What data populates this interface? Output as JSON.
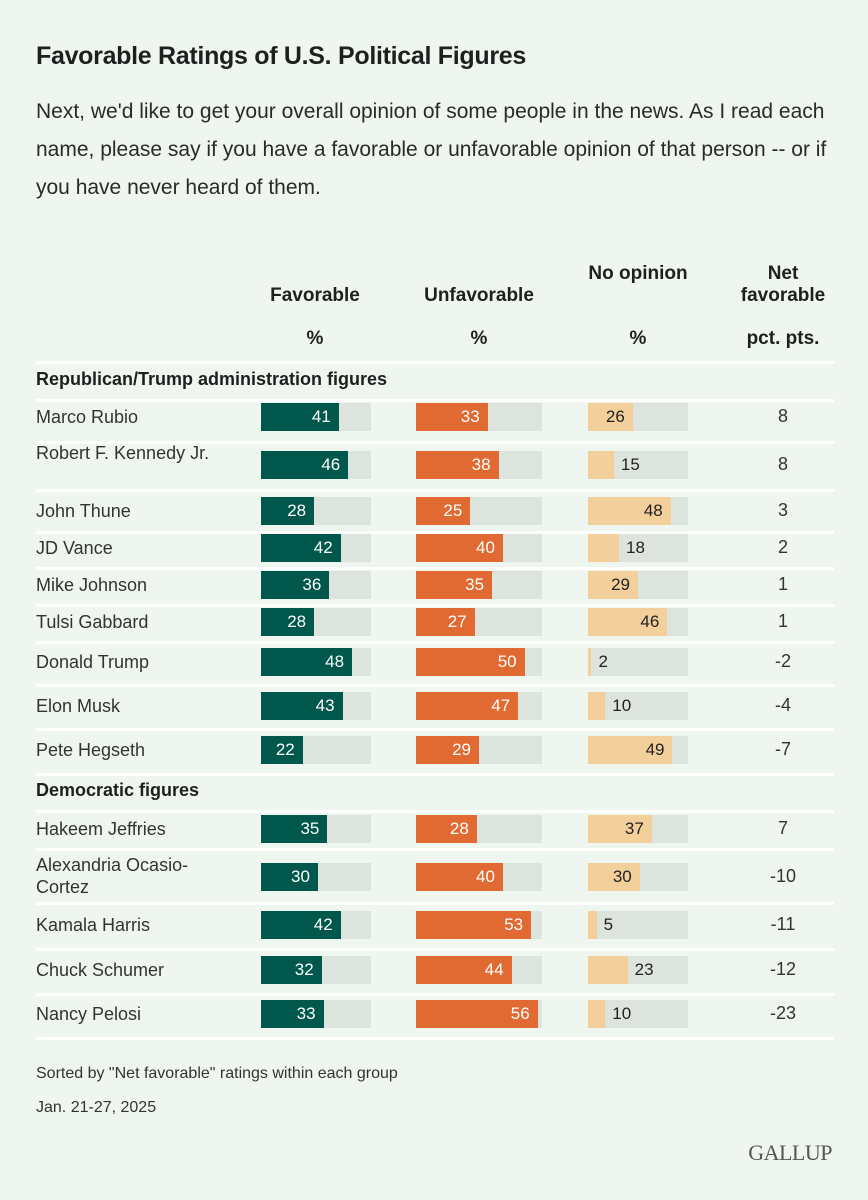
{
  "title": "Favorable Ratings of U.S. Political Figures",
  "subtitle": "Next, we'd like to get your overall opinion of some people in the news. As I read each name, please say if you have a favorable or unfavorable opinion of that person -- or if you have never heard of them.",
  "footer": {
    "note": "Sorted by \"Net favorable\" ratings within each group",
    "date": "Jan. 21-27, 2025",
    "logo": "GALLUP"
  },
  "colors": {
    "favorable": "#00574b",
    "unfavorable": "#e06a31",
    "no_opinion": "#f2cf9b",
    "track": "#dde4dd",
    "background": "#eff6ef"
  },
  "chart_data": {
    "type": "table",
    "title": "Favorable Ratings of U.S. Political Figures",
    "columns": [
      {
        "key": "favorable",
        "label": "Favorable",
        "unit": "%"
      },
      {
        "key": "unfavorable",
        "label": "Unfavorable",
        "unit": "%"
      },
      {
        "key": "no_opinion",
        "label": "No opinion",
        "unit": "%"
      },
      {
        "key": "net",
        "label": "Net favorable",
        "unit": "pct. pts."
      }
    ],
    "bar_max": 58,
    "groups": [
      {
        "label": "Republican/Trump administration figures",
        "rows": [
          {
            "name": "Marco Rubio",
            "favorable": 41,
            "unfavorable": 33,
            "no_opinion": 26,
            "net": "8"
          },
          {
            "name": "Robert F. Kennedy Jr.",
            "favorable": 46,
            "unfavorable": 38,
            "no_opinion": 15,
            "net": "8"
          },
          {
            "name": "John Thune",
            "favorable": 28,
            "unfavorable": 25,
            "no_opinion": 48,
            "net": "3"
          },
          {
            "name": "JD Vance",
            "favorable": 42,
            "unfavorable": 40,
            "no_opinion": 18,
            "net": "2"
          },
          {
            "name": "Mike Johnson",
            "favorable": 36,
            "unfavorable": 35,
            "no_opinion": 29,
            "net": "1"
          },
          {
            "name": "Tulsi Gabbard",
            "favorable": 28,
            "unfavorable": 27,
            "no_opinion": 46,
            "net": "1"
          },
          {
            "name": "Donald Trump",
            "favorable": 48,
            "unfavorable": 50,
            "no_opinion": 2,
            "net": "-2"
          },
          {
            "name": "Elon Musk",
            "favorable": 43,
            "unfavorable": 47,
            "no_opinion": 10,
            "net": "-4"
          },
          {
            "name": "Pete Hegseth",
            "favorable": 22,
            "unfavorable": 29,
            "no_opinion": 49,
            "net": "-7"
          }
        ]
      },
      {
        "label": "Democratic figures",
        "rows": [
          {
            "name": "Hakeem Jeffries",
            "favorable": 35,
            "unfavorable": 28,
            "no_opinion": 37,
            "net": "7"
          },
          {
            "name": "Alexandria Ocasio-Cortez",
            "favorable": 30,
            "unfavorable": 40,
            "no_opinion": 30,
            "net": "-10"
          },
          {
            "name": "Kamala Harris",
            "favorable": 42,
            "unfavorable": 53,
            "no_opinion": 5,
            "net": "-11"
          },
          {
            "name": "Chuck Schumer",
            "favorable": 32,
            "unfavorable": 44,
            "no_opinion": 23,
            "net": "-12"
          },
          {
            "name": "Nancy Pelosi",
            "favorable": 33,
            "unfavorable": 56,
            "no_opinion": 10,
            "net": "-23"
          }
        ]
      }
    ]
  }
}
